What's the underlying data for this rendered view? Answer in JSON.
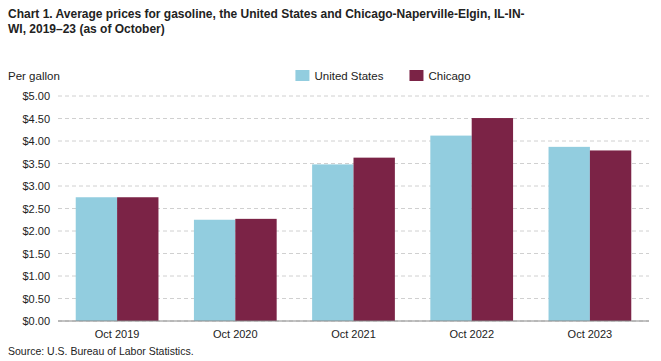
{
  "chart_data": {
    "type": "bar",
    "title": "Chart 1. Average prices for gasoline, the United States and Chicago-Naperville-Elgin, IL-IN-\nWI, 2019–23 (as of October)",
    "y_label": "Per gallon",
    "source": "Source: U.S. Bureau of Labor Statistics.",
    "categories": [
      "Oct 2019",
      "Oct 2020",
      "Oct 2021",
      "Oct 2022",
      "Oct 2023"
    ],
    "series": [
      {
        "name": "United States",
        "color": "#92CDDF",
        "values": [
          2.75,
          2.25,
          3.48,
          4.12,
          3.87
        ]
      },
      {
        "name": "Chicago",
        "color": "#7B2346",
        "values": [
          2.75,
          2.27,
          3.63,
          4.51,
          3.79
        ]
      }
    ],
    "ylim": [
      0,
      5.0
    ],
    "yticks": [
      {
        "value": 0.0,
        "label": "$0.00"
      },
      {
        "value": 0.5,
        "label": "$0.50"
      },
      {
        "value": 1.0,
        "label": "$1.00"
      },
      {
        "value": 1.5,
        "label": "$1.50"
      },
      {
        "value": 2.0,
        "label": "$2.00"
      },
      {
        "value": 2.5,
        "label": "$2.50"
      },
      {
        "value": 3.0,
        "label": "$3.00"
      },
      {
        "value": 3.5,
        "label": "$3.50"
      },
      {
        "value": 4.0,
        "label": "$4.00"
      },
      {
        "value": 4.5,
        "label": "$4.50"
      },
      {
        "value": 5.0,
        "label": "$5.00"
      }
    ],
    "grid": true,
    "legend": "top"
  }
}
